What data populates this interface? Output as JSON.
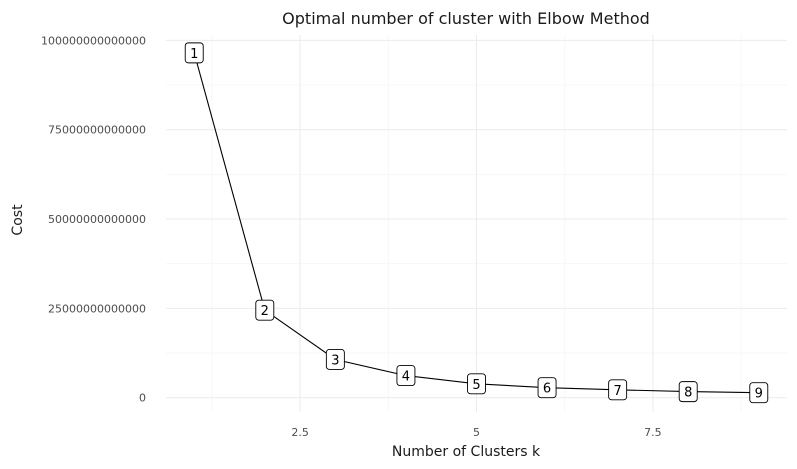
{
  "chart_data": {
    "type": "line",
    "title": "Optimal number of cluster with Elbow Method",
    "xlabel": "Number of Clusters k",
    "ylabel": "Cost",
    "x": [
      1,
      2,
      3,
      4,
      5,
      6,
      7,
      8,
      9
    ],
    "y": [
      96500000000000,
      24500000000000,
      10700000000000,
      6200000000000,
      3900000000000,
      2800000000000,
      2200000000000,
      1700000000000,
      1400000000000
    ],
    "point_labels": [
      "1",
      "2",
      "3",
      "4",
      "5",
      "6",
      "7",
      "8",
      "9"
    ],
    "x_ticks": [
      2.5,
      5,
      7.5
    ],
    "x_tick_labels": [
      "2.5",
      "5",
      "7.5"
    ],
    "y_ticks": [
      0,
      25000000000000,
      50000000000000,
      75000000000000,
      100000000000000
    ],
    "y_tick_labels": [
      "0",
      "25000000000000",
      "50000000000000",
      "75000000000000",
      "100000000000000"
    ],
    "xlim": [
      0.6,
      9.4
    ],
    "ylim": [
      -4000000000000,
      101500000000000
    ],
    "grid": true,
    "legend": "none",
    "colors": {
      "line": "#000000",
      "grid": "#ebebeb",
      "label_fill": "#ffffff"
    }
  }
}
